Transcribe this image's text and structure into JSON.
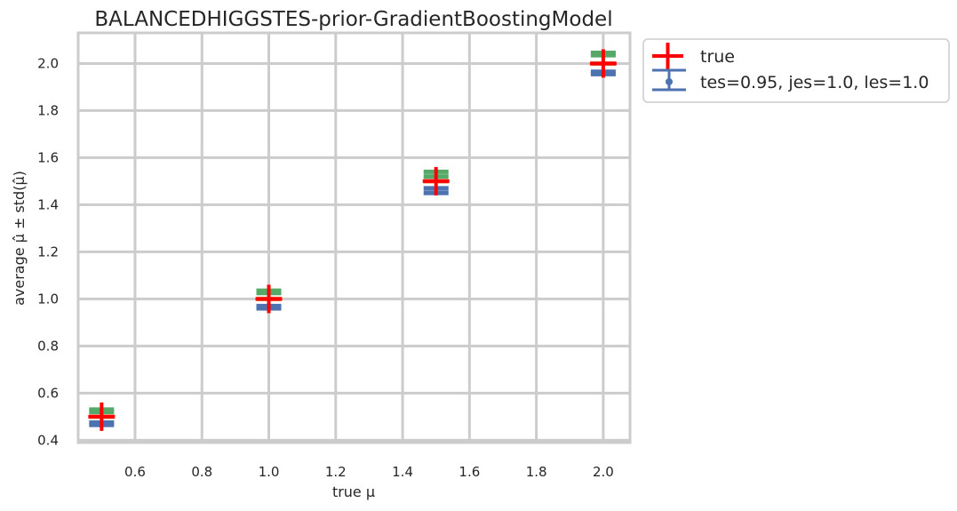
{
  "chart_data": {
    "type": "errorbar",
    "title": "BALANCEDHIGGSTES-prior-GradientBoostingModel",
    "xlabel": "true μ",
    "ylabel": "average μ̂ ± std(μ̂)",
    "xlim": [
      0.43,
      2.08
    ],
    "ylim": [
      0.39,
      2.13
    ],
    "xticks": [
      "0.6",
      "0.8",
      "1.0",
      "1.2",
      "1.4",
      "1.6",
      "1.8",
      "2.0"
    ],
    "yticks": [
      "0.4",
      "0.6",
      "0.8",
      "1.0",
      "1.2",
      "1.4",
      "1.6",
      "1.8",
      "2.0"
    ],
    "grid": true,
    "legend_position": "outside-right",
    "legend": [
      {
        "label": "true",
        "color": "#ff0000",
        "marker": "plus"
      },
      {
        "label": "tes=0.95, jes=1.0, les=1.0",
        "color": "#4c72b0",
        "marker": "errorbar"
      }
    ],
    "true_series": {
      "name": "true",
      "color": "#ff0000",
      "x": [
        0.5,
        1.0,
        1.5,
        2.0
      ],
      "y": [
        0.5,
        1.0,
        1.5,
        2.0
      ]
    },
    "errorbar_series": [
      {
        "color": "#4c72b0",
        "x": [
          0.5,
          1.0,
          1.5,
          2.0
        ],
        "y": [
          0.47,
          0.965,
          1.46,
          1.96
        ],
        "yerr": [
          0.005,
          0.005,
          0.01,
          0.005
        ]
      },
      {
        "color": "#dd8452",
        "x": [
          0.5,
          1.0,
          1.5,
          2.0
        ],
        "y": [
          0.5,
          1.0,
          1.5,
          2.0
        ],
        "yerr": [
          0.0,
          0.0,
          0.0,
          0.0
        ]
      },
      {
        "color": "#55a868",
        "x": [
          0.5,
          1.0,
          1.5,
          2.0
        ],
        "y": [
          0.525,
          1.03,
          1.53,
          2.04
        ],
        "yerr": [
          0.005,
          0.005,
          0.01,
          0.005
        ]
      }
    ]
  }
}
